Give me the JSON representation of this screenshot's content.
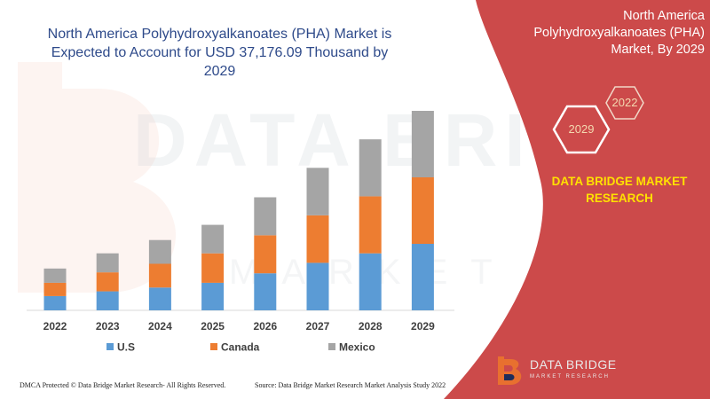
{
  "title": "North America Polyhydroxyalkanoates (PHA) Market is Expected to Account for USD 37,176.09 Thousand by 2029",
  "side_panel": {
    "title": "North America Polyhydroxyalkanoates (PHA) Market, By 2029",
    "hex_label_top": "2022",
    "hex_label_bottom": "2029",
    "company": "DATA BRIDGE MARKET RESEARCH",
    "background_color": "#cc4a4a"
  },
  "logo": {
    "name": "DATA BRIDGE",
    "sub": "MARKET RESEARCH",
    "icon": "data-bridge-logo-icon"
  },
  "watermark": {
    "text": "DATA BRIDGE",
    "sub": "MARKET RESEARCH"
  },
  "footer": {
    "left": "DMCA Protected © Data Bridge Market Research- All Rights Reserved.",
    "right": "Source: Data Bridge Market Research Market Analysis Study 2022"
  },
  "chart_data": {
    "type": "bar",
    "stacked": true,
    "categories": [
      "2022",
      "2023",
      "2024",
      "2025",
      "2026",
      "2027",
      "2028",
      "2029"
    ],
    "series": [
      {
        "name": "U.S",
        "color": "#5b9bd5",
        "values": [
          15,
          20,
          24,
          29,
          39,
          50,
          60,
          70
        ]
      },
      {
        "name": "Canada",
        "color": "#ed7d31",
        "values": [
          14,
          20,
          25,
          31,
          40,
          50,
          60,
          70
        ]
      },
      {
        "name": "Mexico",
        "color": "#a5a5a5",
        "values": [
          15,
          20,
          25,
          30,
          40,
          50,
          60,
          70
        ]
      }
    ],
    "ylim": [
      0,
      210
    ],
    "grid": false,
    "legend": "bottom",
    "xlabel": "",
    "ylabel": ""
  }
}
